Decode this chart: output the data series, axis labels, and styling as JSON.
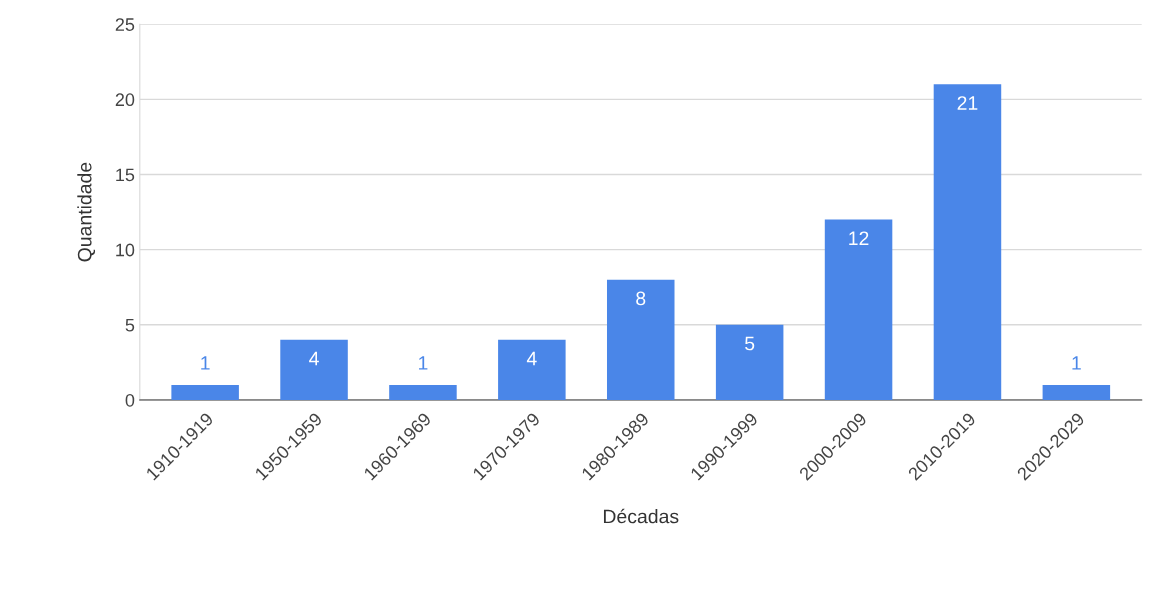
{
  "chart_data": {
    "type": "bar",
    "xlabel": "Décadas",
    "ylabel": "Quantidade",
    "categories": [
      "1910-1919",
      "1950-1959",
      "1960-1969",
      "1970-1979",
      "1980-1989",
      "1990-1999",
      "2000-2009",
      "2010-2019",
      "2020-2029"
    ],
    "values": [
      1,
      4,
      1,
      4,
      8,
      5,
      12,
      21,
      1
    ],
    "color": "#4a86e8",
    "ylim": [
      0,
      25
    ],
    "yticks": [
      0,
      5,
      10,
      15,
      20,
      25
    ],
    "grid": "y",
    "data_labels": true,
    "legend": false
  }
}
